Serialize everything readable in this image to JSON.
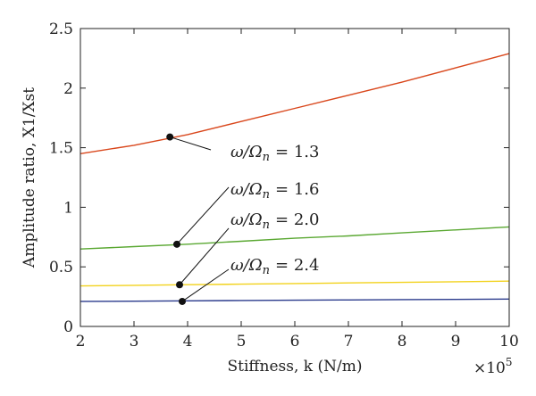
{
  "chart_data": {
    "type": "line",
    "xlabel": "Stiffness, k (N/m)",
    "ylabel": "Amplitude ratio, X1/Xst",
    "x_multiplier": "×10",
    "x_multiplier_exp": "5",
    "xlim": [
      2,
      10
    ],
    "ylim": [
      0,
      2.5
    ],
    "xticks": [
      2,
      3,
      4,
      5,
      6,
      7,
      8,
      9,
      10
    ],
    "yticks": [
      0,
      0.5,
      1,
      1.5,
      2,
      2.5
    ],
    "xtick_labels": [
      "2",
      "3",
      "4",
      "5",
      "6",
      "7",
      "8",
      "9",
      "10"
    ],
    "ytick_labels": [
      "0",
      "0.5",
      "1",
      "1.5",
      "2",
      "2.5"
    ],
    "grid": false,
    "series": [
      {
        "label": "ω/Ω",
        "label_sub": "n",
        "label_value": "= 1.3",
        "color": "#d9471c",
        "x": [
          2,
          3,
          4,
          5,
          6,
          7,
          8,
          9,
          10
        ],
        "values": [
          1.45,
          1.52,
          1.61,
          1.72,
          1.83,
          1.94,
          2.05,
          2.17,
          2.29
        ],
        "marker": [
          3.67,
          1.59
        ]
      },
      {
        "label": "ω/Ω",
        "label_sub": "n",
        "label_value": "= 1.6",
        "color": "#5aa832",
        "x": [
          2,
          3,
          4,
          5,
          6,
          7,
          8,
          9,
          10
        ],
        "values": [
          0.65,
          0.67,
          0.69,
          0.715,
          0.74,
          0.76,
          0.785,
          0.81,
          0.835
        ],
        "marker": [
          3.8,
          0.69
        ]
      },
      {
        "label": "ω/Ω",
        "label_sub": "n",
        "label_value": "= 2.0",
        "color": "#f2d21c",
        "x": [
          2,
          3,
          4,
          5,
          6,
          7,
          8,
          9,
          10
        ],
        "values": [
          0.34,
          0.345,
          0.35,
          0.355,
          0.36,
          0.365,
          0.37,
          0.375,
          0.38
        ],
        "marker": [
          3.85,
          0.35
        ]
      },
      {
        "label": "ω/Ω",
        "label_sub": "n",
        "label_value": "= 2.4",
        "color": "#2a3a8c",
        "x": [
          2,
          3,
          4,
          5,
          6,
          7,
          8,
          9,
          10
        ],
        "values": [
          0.21,
          0.212,
          0.215,
          0.218,
          0.22,
          0.222,
          0.225,
          0.227,
          0.23
        ],
        "marker": [
          3.9,
          0.21
        ]
      }
    ]
  }
}
